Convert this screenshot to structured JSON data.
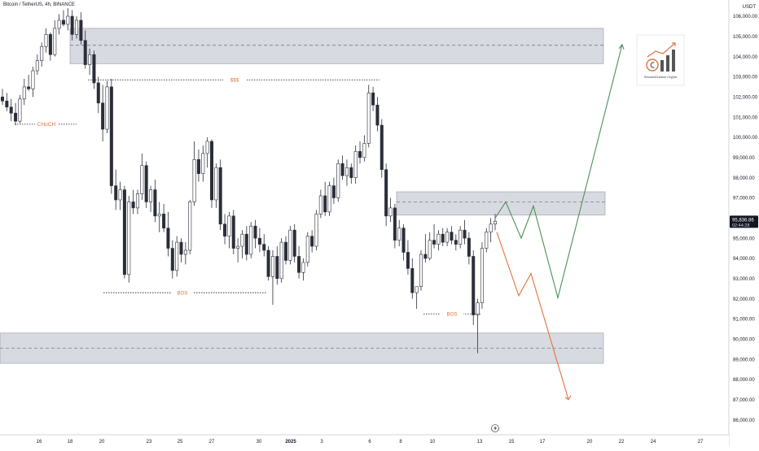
{
  "chart_data": {
    "type": "candlestick",
    "title": "Bitcoin / TetherUS, 4h, BINANCE",
    "currency": "USDT",
    "colors": {
      "candle_up": "#ffffff",
      "candle_down": "#2a2e39",
      "zone_fill": "#d1d4dc",
      "green_path": "#4f8f57",
      "orange_path": "#e3723b",
      "label": "#e3723b",
      "dotted": "#131722"
    },
    "y_ticks": [
      "106,000.00",
      "105,000.00",
      "104,000.00",
      "103,000.00",
      "102,000.00",
      "101,000.00",
      "100,000.00",
      "99,000.00",
      "98,000.00",
      "97,000.00",
      "96,000.00",
      "95,000.00",
      "94,000.00",
      "93,000.00",
      "92,000.00",
      "91,000.00",
      "90,000.00",
      "89,000.00",
      "88,000.00",
      "87,000.00",
      "86,000.00"
    ],
    "x_ticks": [
      "16",
      "18",
      "20",
      "23",
      "25",
      "27",
      "30",
      "2025",
      "3",
      "6",
      "8",
      "10",
      "13",
      "15",
      "17",
      "20",
      "22",
      "24",
      "27"
    ],
    "ylim": [
      85700,
      106500
    ],
    "last_price": "95,836.86",
    "countdown": "02:44:28",
    "supply_zones": [
      {
        "top": 105400,
        "bottom": 103650,
        "mid": 104560
      },
      {
        "top": 97300,
        "bottom": 96150,
        "mid": 96800
      },
      {
        "top": 90300,
        "bottom": 88800,
        "mid": 89550
      }
    ],
    "annotations": [
      {
        "text": "$$$",
        "price": 102850
      },
      {
        "text": "CHoCH",
        "price": 100650
      },
      {
        "text": "BOS",
        "price": 92300
      },
      {
        "text": "BOS",
        "price": 91250
      }
    ],
    "projection_up": [
      96000,
      96800,
      95000,
      96600,
      92050,
      104600
    ],
    "projection_down": [
      95300,
      92150,
      93250,
      87000
    ],
    "logo_label": "SecondChance Crypto",
    "candles_ohlc": [
      [
        102000,
        102400,
        101600,
        101800
      ],
      [
        101800,
        102200,
        101300,
        101500
      ],
      [
        101500,
        101900,
        100800,
        101200
      ],
      [
        101200,
        101700,
        100600,
        100800
      ],
      [
        100800,
        102100,
        100700,
        101900
      ],
      [
        101900,
        102900,
        101600,
        102500
      ],
      [
        102500,
        103100,
        102300,
        102400
      ],
      [
        102400,
        103500,
        102000,
        103300
      ],
      [
        103300,
        104100,
        103100,
        103800
      ],
      [
        103800,
        104700,
        103500,
        104500
      ],
      [
        104500,
        105400,
        104200,
        105100
      ],
      [
        105100,
        105200,
        103800,
        104100
      ],
      [
        104100,
        105800,
        104000,
        105400
      ],
      [
        105400,
        106100,
        105100,
        105800
      ],
      [
        105800,
        106300,
        105500,
        105600
      ],
      [
        105600,
        106400,
        105300,
        106000
      ],
      [
        106000,
        106300,
        104800,
        105100
      ],
      [
        105100,
        106000,
        104900,
        105800
      ],
      [
        105800,
        106200,
        104600,
        104800
      ],
      [
        104800,
        105300,
        103400,
        103600
      ],
      [
        103600,
        104400,
        103100,
        104100
      ],
      [
        104100,
        104300,
        102400,
        102700
      ],
      [
        102700,
        103000,
        101200,
        101700
      ],
      [
        101700,
        102600,
        99800,
        100400
      ],
      [
        100400,
        102800,
        100200,
        102500
      ],
      [
        102500,
        102900,
        97200,
        97600
      ],
      [
        97600,
        98400,
        96400,
        96900
      ],
      [
        96900,
        97800,
        96400,
        97400
      ],
      [
        97400,
        97600,
        93000,
        93200
      ],
      [
        93200,
        97100,
        92800,
        96800
      ],
      [
        96800,
        97400,
        96200,
        96500
      ],
      [
        96500,
        97400,
        96200,
        97200
      ],
      [
        97200,
        99200,
        96900,
        98600
      ],
      [
        98600,
        98800,
        96500,
        96800
      ],
      [
        96800,
        97600,
        96300,
        97400
      ],
      [
        97400,
        97900,
        95800,
        96100
      ],
      [
        96100,
        96800,
        95300,
        96200
      ],
      [
        96200,
        96700,
        95300,
        95500
      ],
      [
        95500,
        96300,
        94100,
        94500
      ],
      [
        94500,
        94900,
        93000,
        93400
      ],
      [
        93400,
        95100,
        93100,
        94800
      ],
      [
        94800,
        95000,
        93800,
        94200
      ],
      [
        94200,
        94800,
        93700,
        94400
      ],
      [
        94400,
        96900,
        94200,
        96800
      ],
      [
        96800,
        99800,
        96600,
        98900
      ],
      [
        98900,
        99400,
        97800,
        98200
      ],
      [
        98200,
        99600,
        97800,
        99200
      ],
      [
        99200,
        100000,
        98500,
        99800
      ],
      [
        99800,
        99900,
        96500,
        96900
      ],
      [
        96900,
        98700,
        96500,
        98500
      ],
      [
        98500,
        98900,
        95400,
        95700
      ],
      [
        95700,
        96200,
        94700,
        95100
      ],
      [
        95100,
        96300,
        94500,
        96100
      ],
      [
        96100,
        96400,
        94200,
        94500
      ],
      [
        94500,
        95000,
        93800,
        94600
      ],
      [
        94600,
        95400,
        94000,
        95200
      ],
      [
        95200,
        95600,
        93900,
        94200
      ],
      [
        94200,
        95800,
        94000,
        95600
      ],
      [
        95600,
        95900,
        94500,
        95000
      ],
      [
        95000,
        95500,
        94300,
        94700
      ],
      [
        94700,
        95200,
        94100,
        94400
      ],
      [
        94400,
        94600,
        92900,
        93100
      ],
      [
        93100,
        94400,
        91700,
        94100
      ],
      [
        94100,
        94600,
        92700,
        93000
      ],
      [
        93000,
        95000,
        92800,
        94800
      ],
      [
        94800,
        95100,
        93700,
        93900
      ],
      [
        93900,
        95600,
        93700,
        95400
      ],
      [
        95400,
        95700,
        93800,
        94100
      ],
      [
        94100,
        94600,
        93000,
        93300
      ],
      [
        93300,
        94000,
        92900,
        93800
      ],
      [
        93800,
        95300,
        93600,
        95100
      ],
      [
        95100,
        95400,
        94300,
        94600
      ],
      [
        94600,
        96400,
        94400,
        96200
      ],
      [
        96200,
        97400,
        96000,
        97100
      ],
      [
        97100,
        97800,
        96100,
        96300
      ],
      [
        96300,
        97800,
        96100,
        97600
      ],
      [
        97600,
        98000,
        96700,
        97000
      ],
      [
        97000,
        98900,
        96800,
        98700
      ],
      [
        98700,
        99100,
        97900,
        98100
      ],
      [
        98100,
        98900,
        97600,
        98500
      ],
      [
        98500,
        98700,
        97700,
        98000
      ],
      [
        98000,
        99600,
        97700,
        99300
      ],
      [
        99300,
        99800,
        98700,
        99000
      ],
      [
        99000,
        100100,
        98800,
        99700
      ],
      [
        99700,
        102600,
        99500,
        102200
      ],
      [
        102200,
        102500,
        101300,
        101600
      ],
      [
        101600,
        102000,
        100300,
        100600
      ],
      [
        100600,
        100900,
        98000,
        98400
      ],
      [
        98400,
        98700,
        95600,
        96100
      ],
      [
        96100,
        97000,
        95800,
        96500
      ],
      [
        96500,
        96700,
        94500,
        94900
      ],
      [
        94900,
        95900,
        94600,
        95500
      ],
      [
        95500,
        95700,
        93900,
        94300
      ],
      [
        94300,
        94900,
        93200,
        93500
      ],
      [
        93500,
        94000,
        92000,
        92300
      ],
      [
        92300,
        92600,
        91500,
        92600
      ],
      [
        92600,
        94400,
        92400,
        94200
      ],
      [
        94200,
        95200,
        93800,
        94000
      ],
      [
        94000,
        95300,
        93900,
        94900
      ],
      [
        94900,
        95700,
        94500,
        94700
      ],
      [
        94700,
        95400,
        94400,
        95200
      ],
      [
        95200,
        95500,
        94600,
        94800
      ],
      [
        94800,
        95500,
        94600,
        95300
      ],
      [
        95300,
        95600,
        94700,
        94900
      ],
      [
        94900,
        95200,
        94400,
        94700
      ],
      [
        94700,
        95600,
        94500,
        95400
      ],
      [
        95400,
        95900,
        94700,
        95000
      ],
      [
        95000,
        95300,
        93700,
        94100
      ],
      [
        94100,
        94400,
        90700,
        91200
      ],
      [
        91200,
        92000,
        89300,
        91800
      ],
      [
        91800,
        94800,
        91500,
        94500
      ],
      [
        94500,
        95500,
        94300,
        95300
      ],
      [
        95300,
        96000,
        94800,
        95700
      ],
      [
        95700,
        96200,
        95400,
        95837
      ]
    ]
  }
}
